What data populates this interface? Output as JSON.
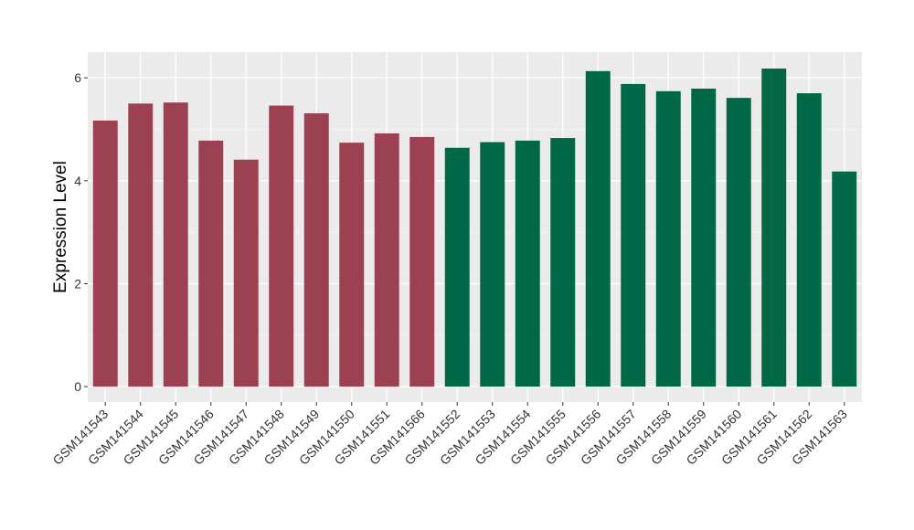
{
  "chart_data": {
    "type": "bar",
    "title": "",
    "xlabel": "",
    "ylabel": "Expression Level",
    "ylim": [
      -0.3,
      6.5
    ],
    "yticks": [
      0,
      2,
      4,
      6
    ],
    "grid": true,
    "background": "#EBEBEB",
    "categories": [
      "GSM141543",
      "GSM141544",
      "GSM141545",
      "GSM141546",
      "GSM141547",
      "GSM141548",
      "GSM141549",
      "GSM141550",
      "GSM141551",
      "GSM141566",
      "GSM141552",
      "GSM141553",
      "GSM141554",
      "GSM141555",
      "GSM141556",
      "GSM141557",
      "GSM141558",
      "GSM141559",
      "GSM141560",
      "GSM141561",
      "GSM141562",
      "GSM141563"
    ],
    "values": [
      5.17,
      5.5,
      5.52,
      4.78,
      4.41,
      5.46,
      5.31,
      4.74,
      4.92,
      4.85,
      4.64,
      4.75,
      4.78,
      4.83,
      6.13,
      5.88,
      5.74,
      5.79,
      5.61,
      6.18,
      5.7,
      4.18
    ],
    "groups": [
      0,
      0,
      0,
      0,
      0,
      0,
      0,
      0,
      0,
      0,
      1,
      1,
      1,
      1,
      1,
      1,
      1,
      1,
      1,
      1,
      1,
      1
    ],
    "colors": [
      "#9B4151",
      "#006846"
    ]
  }
}
